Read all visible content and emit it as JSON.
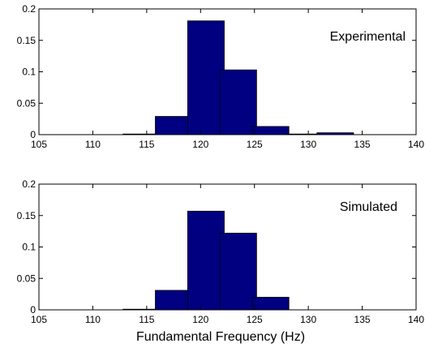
{
  "chart_data": [
    {
      "type": "bar",
      "title": "",
      "xlabel": "",
      "ylabel": "",
      "annotation": "Experimental",
      "xlim": [
        105,
        140
      ],
      "ylim": [
        0,
        0.2
      ],
      "xticks": [
        "105",
        "110",
        "115",
        "120",
        "125",
        "130",
        "135",
        "140"
      ],
      "yticks": [
        "0",
        "0.05",
        "0.1",
        "0.15",
        "0.2"
      ],
      "bar_width": 3.4,
      "bar_color": "#000080",
      "bars": [
        {
          "x": 114.5,
          "value": 0.001
        },
        {
          "x": 117.5,
          "value": 0.029
        },
        {
          "x": 120.5,
          "value": 0.181
        },
        {
          "x": 123.5,
          "value": 0.103
        },
        {
          "x": 126.5,
          "value": 0.013
        },
        {
          "x": 129.5,
          "value": 0.001
        },
        {
          "x": 132.5,
          "value": 0.003
        }
      ]
    },
    {
      "type": "bar",
      "title": "",
      "xlabel": "Fundamental Frequency (Hz)",
      "ylabel": "",
      "annotation": "Simulated",
      "xlim": [
        105,
        140
      ],
      "ylim": [
        0,
        0.2
      ],
      "xticks": [
        "105",
        "110",
        "115",
        "120",
        "125",
        "130",
        "135",
        "140"
      ],
      "yticks": [
        "0",
        "0.05",
        "0.1",
        "0.15",
        "0.2"
      ],
      "bar_width": 3.4,
      "bar_color": "#000080",
      "bars": [
        {
          "x": 114.5,
          "value": 0.001
        },
        {
          "x": 117.5,
          "value": 0.031
        },
        {
          "x": 120.5,
          "value": 0.157
        },
        {
          "x": 123.5,
          "value": 0.122
        },
        {
          "x": 126.5,
          "value": 0.02
        }
      ]
    }
  ]
}
